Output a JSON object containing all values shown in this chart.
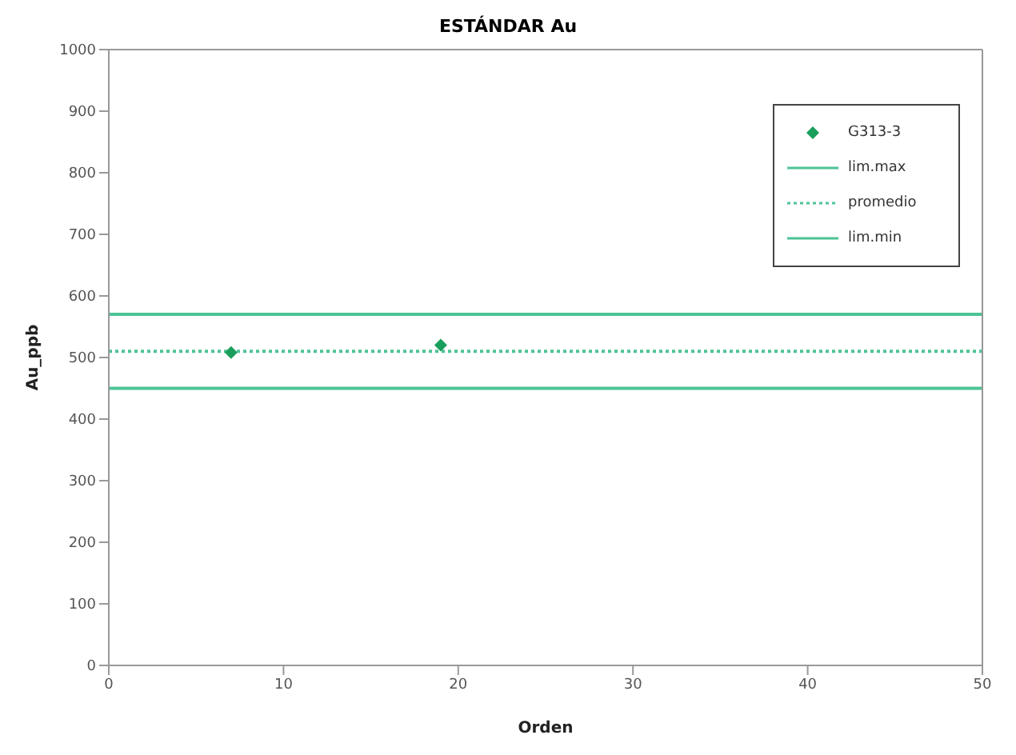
{
  "chart_data": {
    "type": "scatter",
    "title": "ESTÁNDAR Au",
    "xlabel": "Orden",
    "ylabel": "Au_ppb",
    "xlim": [
      0,
      50
    ],
    "xticks": [
      0,
      10,
      20,
      30,
      40,
      50
    ],
    "ylim": [
      0,
      1000
    ],
    "yticks": [
      0,
      100,
      200,
      300,
      400,
      500,
      600,
      700,
      800,
      900,
      1000
    ],
    "grid": false,
    "legend": "top right",
    "series": [
      {
        "name": "G313-3",
        "color": "#1a9e5c",
        "marker": "diamond",
        "x": [
          7,
          19
        ],
        "values": [
          508,
          520
        ]
      },
      {
        "name": "lim.max",
        "type": "line",
        "color": "#4cc495",
        "marker": "none",
        "line_style": "solid",
        "x": [
          0,
          50
        ],
        "values": [
          570,
          570
        ]
      },
      {
        "name": "promedio",
        "type": "line",
        "color": "#4cc495",
        "marker": "none",
        "line_style": "dotted",
        "x": [
          0,
          50
        ],
        "values": [
          510,
          510
        ]
      },
      {
        "name": "lim.min",
        "type": "line",
        "color": "#4cc495",
        "marker": "none",
        "line_style": "solid",
        "x": [
          0,
          50
        ],
        "values": [
          450,
          450
        ]
      }
    ]
  }
}
